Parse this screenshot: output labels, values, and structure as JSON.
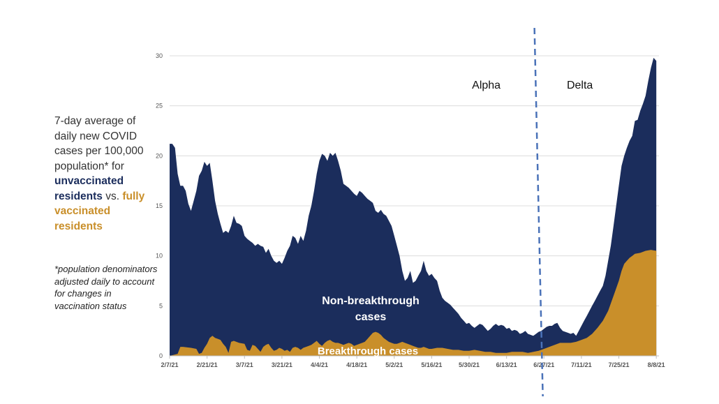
{
  "description": {
    "line_parts": [
      "7-day average of daily new COVID cases per 100,000 population* for ",
      "unvaccinated residents",
      " vs. ",
      "fully vaccinated residents"
    ]
  },
  "note": "*population denominators adjusted daily to account for changes in vaccination status",
  "colors": {
    "unvaccinated": "#1b2d5c",
    "vaccinated": "#c98f2a",
    "divider": "#4a72b8",
    "grid": "#dcdcdc"
  },
  "chart_data": {
    "type": "area",
    "x_tick_labels": [
      "2/7/21",
      "2/21/21",
      "3/7/21",
      "3/21/21",
      "4/4/21",
      "4/18/21",
      "5/2/21",
      "5/16/21",
      "5/30/21",
      "6/13/21",
      "6/27/21",
      "7/11/21",
      "7/25/21",
      "8/8/21"
    ],
    "y_tick_labels": [
      "0",
      "5",
      "10",
      "15",
      "20",
      "25",
      "30"
    ],
    "ylim": [
      0,
      30
    ],
    "x_range_days": [
      0,
      183
    ],
    "grid": true,
    "period_labels": [
      "Alpha",
      "Delta"
    ],
    "period_divider_day": 138,
    "series": [
      {
        "name": "Non-breakthrough cases",
        "points": [
          [
            0,
            21.2
          ],
          [
            1,
            21.2
          ],
          [
            2,
            20.8
          ],
          [
            3,
            18.2
          ],
          [
            4,
            17
          ],
          [
            5,
            17
          ],
          [
            6,
            16.5
          ],
          [
            7,
            15.2
          ],
          [
            8,
            14.5
          ],
          [
            9,
            15.5
          ],
          [
            10,
            16.5
          ],
          [
            11,
            18
          ],
          [
            12,
            18.5
          ],
          [
            13,
            19.4
          ],
          [
            14,
            19
          ],
          [
            15,
            19.3
          ],
          [
            16,
            17.5
          ],
          [
            17,
            15.5
          ],
          [
            18,
            14.2
          ],
          [
            19,
            13.2
          ],
          [
            20,
            12.3
          ],
          [
            21,
            12.5
          ],
          [
            22,
            12.3
          ],
          [
            23,
            13
          ],
          [
            24,
            14
          ],
          [
            25,
            13.3
          ],
          [
            26,
            13.2
          ],
          [
            27,
            13
          ],
          [
            28,
            12
          ],
          [
            29,
            11.7
          ],
          [
            30,
            11.5
          ],
          [
            31,
            11.3
          ],
          [
            32,
            11
          ],
          [
            33,
            11.2
          ],
          [
            34,
            11
          ],
          [
            35,
            10.9
          ],
          [
            36,
            10.3
          ],
          [
            37,
            10.7
          ],
          [
            38,
            10
          ],
          [
            39,
            9.5
          ],
          [
            40,
            9.3
          ],
          [
            41,
            9.5
          ],
          [
            42,
            9.2
          ],
          [
            43,
            9.8
          ],
          [
            44,
            10.5
          ],
          [
            45,
            11
          ],
          [
            46,
            12
          ],
          [
            47,
            11.8
          ],
          [
            48,
            11.2
          ],
          [
            49,
            12
          ],
          [
            50,
            11.5
          ],
          [
            51,
            12.5
          ],
          [
            52,
            14
          ],
          [
            53,
            15
          ],
          [
            54,
            16.5
          ],
          [
            55,
            18.2
          ],
          [
            56,
            19.5
          ],
          [
            57,
            20.2
          ],
          [
            58,
            20
          ],
          [
            59,
            19.5
          ],
          [
            60,
            20.3
          ],
          [
            61,
            20
          ],
          [
            62,
            20.3
          ],
          [
            63,
            19.5
          ],
          [
            64,
            18.5
          ],
          [
            65,
            17.2
          ],
          [
            66,
            17
          ],
          [
            67,
            16.8
          ],
          [
            68,
            16.5
          ],
          [
            69,
            16.2
          ],
          [
            70,
            16
          ],
          [
            71,
            16.5
          ],
          [
            72,
            16.3
          ],
          [
            73,
            16
          ],
          [
            74,
            15.7
          ],
          [
            75,
            15.5
          ],
          [
            76,
            15.3
          ],
          [
            77,
            14.5
          ],
          [
            78,
            14.3
          ],
          [
            79,
            14.6
          ],
          [
            80,
            14.2
          ],
          [
            81,
            14
          ],
          [
            82,
            13.5
          ],
          [
            83,
            13
          ],
          [
            84,
            12
          ],
          [
            85,
            11
          ],
          [
            86,
            10
          ],
          [
            87,
            8.5
          ],
          [
            88,
            7.5
          ],
          [
            89,
            7.8
          ],
          [
            90,
            8.5
          ],
          [
            91,
            7.3
          ],
          [
            92,
            7.5
          ],
          [
            93,
            8
          ],
          [
            94,
            8.5
          ],
          [
            95,
            9.5
          ],
          [
            96,
            8.5
          ],
          [
            97,
            8
          ],
          [
            98,
            8.2
          ],
          [
            99,
            7.8
          ],
          [
            100,
            7.5
          ],
          [
            101,
            6.5
          ],
          [
            102,
            5.8
          ],
          [
            103,
            5.5
          ],
          [
            104,
            5.3
          ],
          [
            105,
            5.1
          ],
          [
            106,
            4.8
          ],
          [
            107,
            4.5
          ],
          [
            108,
            4.2
          ],
          [
            109,
            3.8
          ],
          [
            110,
            3.5
          ],
          [
            111,
            3.2
          ],
          [
            112,
            3.3
          ],
          [
            113,
            3
          ],
          [
            114,
            2.8
          ],
          [
            115,
            3
          ],
          [
            116,
            3.2
          ],
          [
            117,
            3.1
          ],
          [
            118,
            2.8
          ],
          [
            119,
            2.5
          ],
          [
            120,
            2.7
          ],
          [
            121,
            3
          ],
          [
            122,
            3.2
          ],
          [
            123,
            3
          ],
          [
            124,
            3.1
          ],
          [
            125,
            3
          ],
          [
            126,
            2.7
          ],
          [
            127,
            2.8
          ],
          [
            128,
            2.5
          ],
          [
            129,
            2.6
          ],
          [
            130,
            2.5
          ],
          [
            131,
            2.2
          ],
          [
            132,
            2.3
          ],
          [
            133,
            2.5
          ],
          [
            134,
            2.2
          ],
          [
            135,
            2.1
          ],
          [
            136,
            2
          ],
          [
            137,
            2.2
          ],
          [
            138,
            2.4
          ],
          [
            139,
            2.5
          ],
          [
            140,
            2.7
          ],
          [
            141,
            2.9
          ],
          [
            142,
            3
          ],
          [
            143,
            3
          ],
          [
            144,
            3.2
          ],
          [
            145,
            3.3
          ],
          [
            146,
            2.8
          ],
          [
            147,
            2.5
          ],
          [
            148,
            2.4
          ],
          [
            149,
            2.3
          ],
          [
            150,
            2.2
          ],
          [
            151,
            2.3
          ],
          [
            152,
            2
          ],
          [
            153,
            2.5
          ],
          [
            154,
            3
          ],
          [
            155,
            3.5
          ],
          [
            156,
            4
          ],
          [
            157,
            4.5
          ],
          [
            158,
            5
          ],
          [
            159,
            5.5
          ],
          [
            160,
            6
          ],
          [
            161,
            6.5
          ],
          [
            162,
            7
          ],
          [
            163,
            8
          ],
          [
            164,
            9.5
          ],
          [
            165,
            11
          ],
          [
            166,
            13
          ],
          [
            167,
            15
          ],
          [
            168,
            17
          ],
          [
            169,
            19
          ],
          [
            170,
            20
          ],
          [
            171,
            20.8
          ],
          [
            172,
            21.5
          ],
          [
            173,
            22
          ],
          [
            174,
            23.5
          ],
          [
            175,
            23.6
          ],
          [
            176,
            24.5
          ],
          [
            177,
            25.2
          ],
          [
            178,
            26
          ],
          [
            179,
            27.5
          ],
          [
            180,
            28.8
          ],
          [
            181,
            29.8
          ],
          [
            182,
            29.5
          ]
        ]
      },
      {
        "name": "Breakthrough cases",
        "points": [
          [
            0,
            0
          ],
          [
            3,
            0.2
          ],
          [
            4,
            0.9
          ],
          [
            5,
            0.9
          ],
          [
            8,
            0.8
          ],
          [
            10,
            0.7
          ],
          [
            11,
            0.2
          ],
          [
            12,
            0.3
          ],
          [
            13,
            0.8
          ],
          [
            14,
            1.2
          ],
          [
            15,
            1.8
          ],
          [
            16,
            2.0
          ],
          [
            17,
            1.8
          ],
          [
            18,
            1.7
          ],
          [
            19,
            1.6
          ],
          [
            20,
            1.2
          ],
          [
            21,
            0.9
          ],
          [
            22,
            0.3
          ],
          [
            23,
            1.4
          ],
          [
            24,
            1.5
          ],
          [
            26,
            1.3
          ],
          [
            28,
            1.2
          ],
          [
            29,
            0.6
          ],
          [
            30,
            0.5
          ],
          [
            31,
            1.1
          ],
          [
            32,
            1.0
          ],
          [
            33,
            0.7
          ],
          [
            34,
            0.4
          ],
          [
            35,
            0.9
          ],
          [
            36,
            1.1
          ],
          [
            37,
            1.2
          ],
          [
            38,
            0.8
          ],
          [
            39,
            0.5
          ],
          [
            40,
            0.6
          ],
          [
            41,
            0.8
          ],
          [
            42,
            0.7
          ],
          [
            43,
            0.5
          ],
          [
            44,
            0.6
          ],
          [
            45,
            0.4
          ],
          [
            46,
            0.8
          ],
          [
            47,
            0.9
          ],
          [
            48,
            0.8
          ],
          [
            49,
            0.6
          ],
          [
            50,
            0.8
          ],
          [
            51,
            0.9
          ],
          [
            52,
            1.0
          ],
          [
            53,
            1.1
          ],
          [
            54,
            1.3
          ],
          [
            55,
            1.5
          ],
          [
            56,
            1.2
          ],
          [
            57,
            1.0
          ],
          [
            58,
            1.3
          ],
          [
            59,
            1.5
          ],
          [
            60,
            1.6
          ],
          [
            61,
            1.4
          ],
          [
            62,
            1.3
          ],
          [
            63,
            1.3
          ],
          [
            64,
            1.2
          ],
          [
            65,
            1.1
          ],
          [
            66,
            1.2
          ],
          [
            67,
            1.3
          ],
          [
            68,
            1.2
          ],
          [
            69,
            1.0
          ],
          [
            70,
            1.1
          ],
          [
            71,
            1.2
          ],
          [
            72,
            1.3
          ],
          [
            73,
            1.4
          ],
          [
            74,
            1.7
          ],
          [
            75,
            2.0
          ],
          [
            76,
            2.3
          ],
          [
            77,
            2.4
          ],
          [
            78,
            2.3
          ],
          [
            79,
            2.1
          ],
          [
            80,
            1.8
          ],
          [
            81,
            1.6
          ],
          [
            82,
            1.4
          ],
          [
            83,
            1.3
          ],
          [
            84,
            1.2
          ],
          [
            85,
            1.2
          ],
          [
            86,
            1.3
          ],
          [
            87,
            1.4
          ],
          [
            88,
            1.3
          ],
          [
            89,
            1.2
          ],
          [
            90,
            1.1
          ],
          [
            91,
            1.0
          ],
          [
            92,
            0.9
          ],
          [
            93,
            0.8
          ],
          [
            94,
            0.8
          ],
          [
            95,
            0.9
          ],
          [
            96,
            0.8
          ],
          [
            97,
            0.7
          ],
          [
            98,
            0.7
          ],
          [
            100,
            0.8
          ],
          [
            102,
            0.8
          ],
          [
            104,
            0.7
          ],
          [
            106,
            0.6
          ],
          [
            108,
            0.6
          ],
          [
            110,
            0.5
          ],
          [
            112,
            0.5
          ],
          [
            114,
            0.6
          ],
          [
            116,
            0.5
          ],
          [
            118,
            0.4
          ],
          [
            120,
            0.4
          ],
          [
            122,
            0.3
          ],
          [
            124,
            0.3
          ],
          [
            126,
            0.3
          ],
          [
            128,
            0.4
          ],
          [
            130,
            0.4
          ],
          [
            132,
            0.4
          ],
          [
            134,
            0.3
          ],
          [
            136,
            0.4
          ],
          [
            138,
            0.5
          ],
          [
            140,
            0.7
          ],
          [
            142,
            0.9
          ],
          [
            144,
            1.1
          ],
          [
            146,
            1.3
          ],
          [
            148,
            1.3
          ],
          [
            150,
            1.3
          ],
          [
            152,
            1.4
          ],
          [
            154,
            1.6
          ],
          [
            156,
            1.8
          ],
          [
            158,
            2.2
          ],
          [
            160,
            2.8
          ],
          [
            162,
            3.5
          ],
          [
            164,
            4.5
          ],
          [
            166,
            6.0
          ],
          [
            168,
            7.5
          ],
          [
            169,
            8.5
          ],
          [
            170,
            9.2
          ],
          [
            171,
            9.5
          ],
          [
            172,
            9.8
          ],
          [
            173,
            10.0
          ],
          [
            174,
            10.2
          ],
          [
            176,
            10.3
          ],
          [
            178,
            10.5
          ],
          [
            180,
            10.6
          ],
          [
            182,
            10.5
          ]
        ]
      }
    ]
  }
}
